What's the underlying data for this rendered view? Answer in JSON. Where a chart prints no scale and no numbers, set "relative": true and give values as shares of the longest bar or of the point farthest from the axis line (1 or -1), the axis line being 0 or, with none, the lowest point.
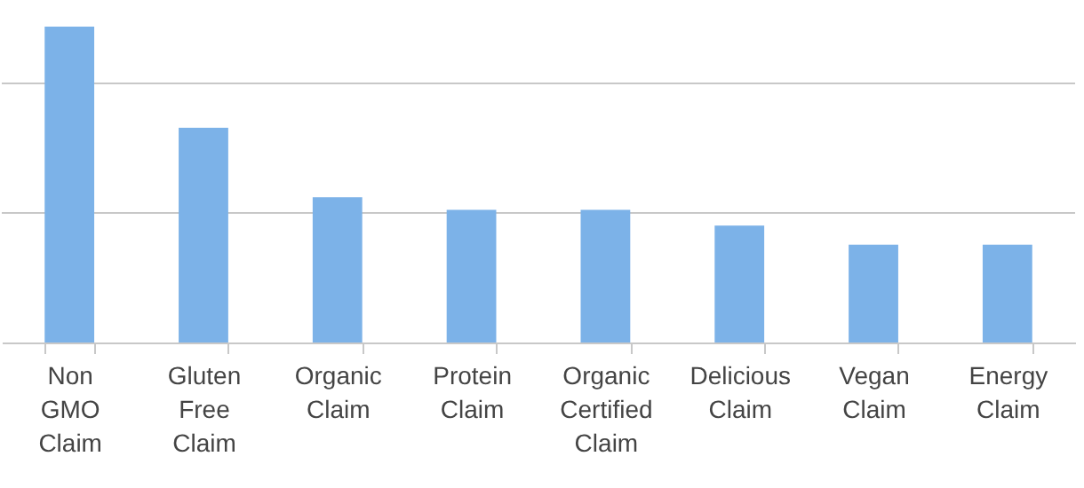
{
  "chart_data": {
    "type": "bar",
    "relative": true,
    "color": "#7cb2e8",
    "categories": [
      "Non GMO Claim",
      "Gluten Free Claim",
      "Organic Claim",
      "Protein Claim",
      "Organic Certified Claim",
      "Delicious Claim",
      "Vegan Claim",
      "Energy Claim"
    ],
    "values": [
      1,
      0.68,
      0.46,
      0.42,
      0.42,
      0.37,
      0.31,
      0.31
    ],
    "ref_lines": [
      {
        "axis": "y",
        "value": 0.41,
        "color": "#c8c8c8"
      },
      {
        "axis": "y",
        "value": 0.82,
        "color": "#c8c8c8"
      }
    ]
  }
}
